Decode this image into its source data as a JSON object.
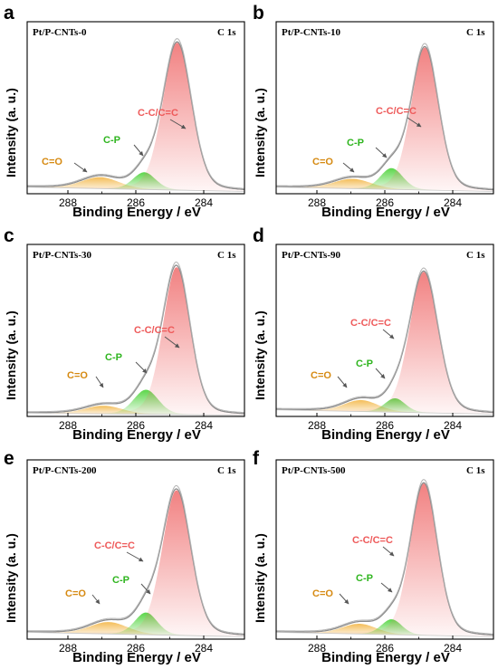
{
  "colors": {
    "axis": "#000000",
    "envelope": "#8c8c8c",
    "raw": "#b4b4b4",
    "cc": "#ef6b6b",
    "cp": "#3fcf2a",
    "co": "#f2b23c",
    "cc_label": "#ee5a5a",
    "cp_label": "#2fb51f",
    "co_label": "#d68a12"
  },
  "chart_data": [
    {
      "panel": "a",
      "type": "line",
      "title": "Pt/P-CNTs-0",
      "spectrum": "C 1s",
      "xlabel": "Binding Energy / eV",
      "ylabel": "Intensity (a. u.)",
      "xlim": [
        289.2,
        282.8
      ],
      "xticks": [
        288,
        286,
        284
      ],
      "ylim": [
        0,
        1.05
      ],
      "baseline": 0.04,
      "peaks": [
        {
          "name": "C-C/C=C",
          "center": 284.78,
          "height": 0.9,
          "width": 0.42
        },
        {
          "name": "C-P",
          "center": 285.75,
          "height": 0.105,
          "width": 0.33
        },
        {
          "name": "C=O",
          "center": 287.05,
          "height": 0.07,
          "width": 0.55
        }
      ]
    },
    {
      "panel": "b",
      "type": "line",
      "title": "Pt/P-CNTs-10",
      "spectrum": "C 1s",
      "xlabel": "Binding Energy / eV",
      "ylabel": "Intensity (a. u.)",
      "xlim": [
        289.2,
        282.8
      ],
      "xticks": [
        288,
        286,
        284
      ],
      "ylim": [
        0,
        1.05
      ],
      "baseline": 0.04,
      "peaks": [
        {
          "name": "C-C/C=C",
          "center": 284.82,
          "height": 0.87,
          "width": 0.4
        },
        {
          "name": "C-P",
          "center": 285.8,
          "height": 0.13,
          "width": 0.33
        },
        {
          "name": "C=O",
          "center": 286.95,
          "height": 0.06,
          "width": 0.55
        }
      ]
    },
    {
      "panel": "c",
      "type": "line",
      "title": "Pt/P-CNTs-30",
      "spectrum": "C 1s",
      "xlabel": "Binding Energy / eV",
      "ylabel": "Intensity (a. u.)",
      "xlim": [
        289.2,
        282.8
      ],
      "xticks": [
        288,
        286,
        284
      ],
      "ylim": [
        0,
        1.05
      ],
      "baseline": 0.02,
      "peaks": [
        {
          "name": "C-C/C=C",
          "center": 284.8,
          "height": 0.9,
          "width": 0.4
        },
        {
          "name": "C-P",
          "center": 285.7,
          "height": 0.15,
          "width": 0.36
        },
        {
          "name": "C=O",
          "center": 286.95,
          "height": 0.05,
          "width": 0.55
        }
      ]
    },
    {
      "panel": "d",
      "type": "line",
      "title": "Pt/P-CNTs-90",
      "spectrum": "C 1s",
      "xlabel": "Binding Energy / eV",
      "ylabel": "Intensity (a. u.)",
      "xlim": [
        289.2,
        282.8
      ],
      "xticks": [
        288,
        286,
        284
      ],
      "ylim": [
        0,
        1.05
      ],
      "baseline": 0.04,
      "peaks": [
        {
          "name": "C-C/C=C",
          "center": 284.85,
          "height": 0.86,
          "width": 0.42
        },
        {
          "name": "C-P",
          "center": 285.7,
          "height": 0.085,
          "width": 0.3
        },
        {
          "name": "C=O",
          "center": 286.7,
          "height": 0.07,
          "width": 0.5
        }
      ]
    },
    {
      "panel": "e",
      "type": "line",
      "title": "Pt/P-CNTs-200",
      "spectrum": "C 1s",
      "xlabel": "Binding Energy / eV",
      "ylabel": "Intensity (a. u.)",
      "xlim": [
        289.2,
        282.8
      ],
      "xticks": [
        288,
        286,
        284
      ],
      "ylim": [
        0,
        1.05
      ],
      "baseline": 0.04,
      "peaks": [
        {
          "name": "C-C/C=C",
          "center": 284.8,
          "height": 0.85,
          "width": 0.42
        },
        {
          "name": "C-P",
          "center": 285.7,
          "height": 0.13,
          "width": 0.33
        },
        {
          "name": "C=O",
          "center": 286.8,
          "height": 0.07,
          "width": 0.55
        }
      ]
    },
    {
      "panel": "f",
      "type": "line",
      "title": "Pt/P-CNTs-500",
      "spectrum": "C 1s",
      "xlabel": "Binding Energy / eV",
      "ylabel": "Intensity (a. u.)",
      "xlim": [
        289.2,
        282.8
      ],
      "xticks": [
        288,
        286,
        284
      ],
      "ylim": [
        0,
        1.05
      ],
      "baseline": 0.04,
      "peaks": [
        {
          "name": "C-C/C=C",
          "center": 284.85,
          "height": 0.89,
          "width": 0.4
        },
        {
          "name": "C-P",
          "center": 285.8,
          "height": 0.09,
          "width": 0.3
        },
        {
          "name": "C=O",
          "center": 286.75,
          "height": 0.06,
          "width": 0.5
        }
      ]
    }
  ]
}
